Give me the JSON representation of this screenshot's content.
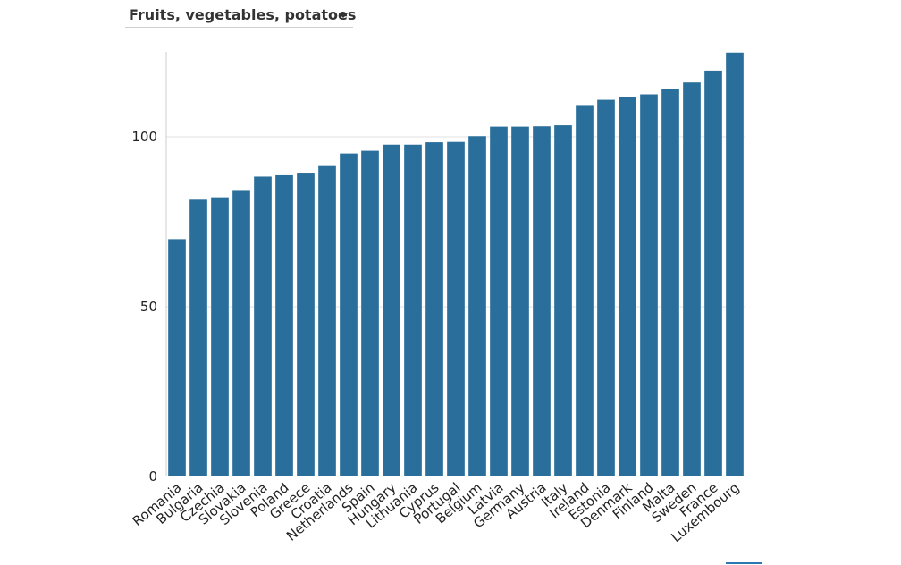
{
  "selector": {
    "label": "Fruits, vegetables, potatoes",
    "icon": "chevron-down-icon"
  },
  "colors": {
    "bar": "#2a6f9b",
    "grid": "#e0e0e0",
    "axis": "#cccccc"
  },
  "chart_data": {
    "type": "bar",
    "title": "",
    "xlabel": "",
    "ylabel": "",
    "ylim": [
      0,
      125
    ],
    "yticks": [
      0,
      50,
      100
    ],
    "grid": true,
    "categories": [
      "Romania",
      "Bulgaria",
      "Czechia",
      "Slovakia",
      "Slovenia",
      "Poland",
      "Greece",
      "Croatia",
      "Netherlands",
      "Spain",
      "Hungary",
      "Lithuania",
      "Cyprus",
      "Portugal",
      "Belgium",
      "Latvia",
      "Germany",
      "Austria",
      "Italy",
      "Ireland",
      "Estonia",
      "Denmark",
      "Finland",
      "Malta",
      "Sweden",
      "France",
      "Luxembourg"
    ],
    "values": [
      69.9,
      81.5,
      82.2,
      84.1,
      88.3,
      88.7,
      89.2,
      91.4,
      95.1,
      95.9,
      97.7,
      97.7,
      98.4,
      98.5,
      100.2,
      103.0,
      103.0,
      103.1,
      103.4,
      109.1,
      110.9,
      111.6,
      112.5,
      114.0,
      116.0,
      119.5,
      124.8
    ]
  }
}
